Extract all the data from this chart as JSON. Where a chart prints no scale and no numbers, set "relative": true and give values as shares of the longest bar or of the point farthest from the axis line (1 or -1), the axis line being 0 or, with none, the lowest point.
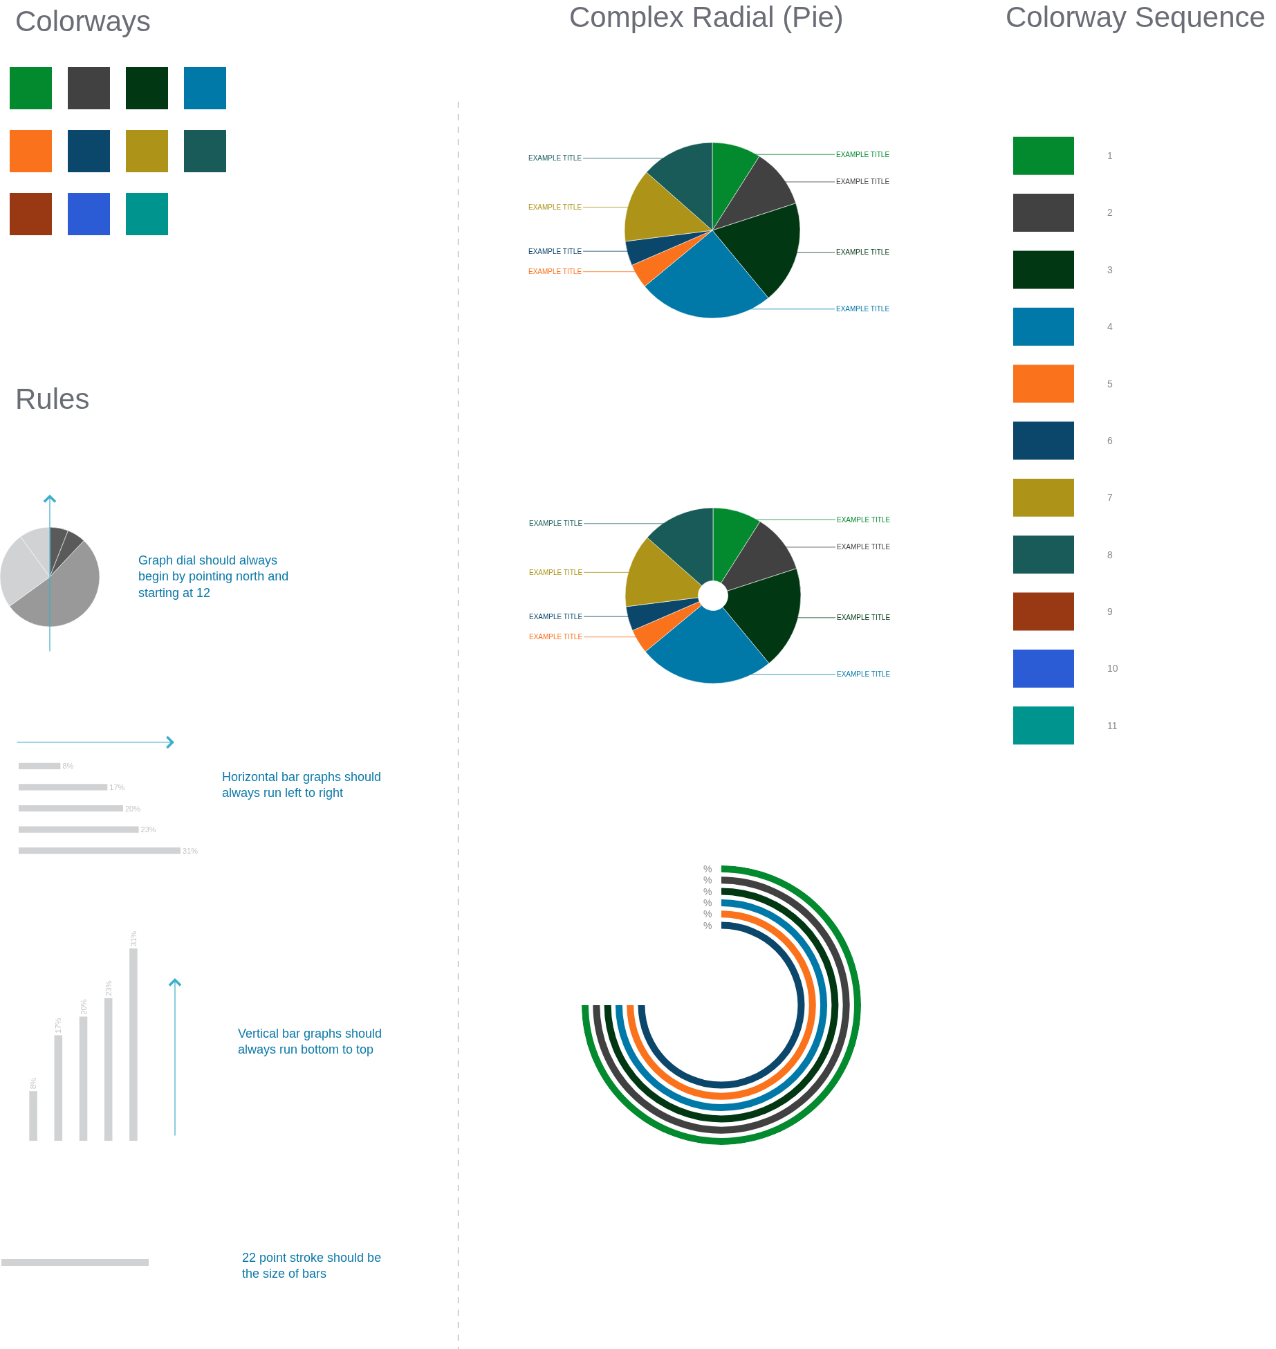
{
  "chart_data": [
    {
      "type": "other",
      "title": "Colorways",
      "colors": [
        "#038a2f",
        "#414141",
        "#013813",
        "#0079a8",
        "#fa721c",
        "#0b466b",
        "#ad9317",
        "#185b59",
        "#983914",
        "#2c5bd6",
        "#00948f"
      ]
    },
    {
      "type": "pie",
      "title": "Rules",
      "categories": [
        null,
        null,
        null,
        null,
        null
      ],
      "values": [
        6,
        6,
        53,
        25,
        10
      ],
      "colors": [
        "#5a5a5a",
        "#5a5a5a",
        "#999999",
        "#d1d2d4",
        "#d1d2d4"
      ],
      "annotations": [
        "Graph dial should always\nbegin by pointing north and\nstarting at 12"
      ]
    },
    {
      "type": "bar",
      "orientation": "horizontal",
      "categories": [
        null,
        null,
        null,
        null,
        null
      ],
      "values": [
        8,
        17,
        20,
        23,
        31
      ],
      "value_labels": [
        "8%",
        "17%",
        "20%",
        "23%",
        "31%"
      ],
      "color": "#d1d2d4",
      "annotations": [
        "Horizontal bar graphs should\nalways run left to right"
      ]
    },
    {
      "type": "bar",
      "categories": [
        null,
        null,
        null,
        null,
        null
      ],
      "values": [
        8,
        17,
        20,
        23,
        31
      ],
      "value_labels": [
        "8%",
        "17%",
        "20%",
        "23%",
        "31%"
      ],
      "color": "#d1d2d4",
      "annotations": [
        "Vertical bar graphs should\nalways run bottom to top"
      ]
    },
    {
      "type": "other",
      "color": "#d1d2d4",
      "annotations": [
        "22 point stroke should be\nthe size of bars"
      ]
    },
    {
      "type": "pie",
      "title": "Complex Radial (Pie)",
      "categories": [
        "EXAMPLE TITLE",
        "EXAMPLE TITLE",
        "EXAMPLE TITLE",
        "EXAMPLE TITLE",
        "EXAMPLE TITLE",
        "EXAMPLE TITLE",
        "EXAMPLE TITLE",
        "EXAMPLE TITLE"
      ],
      "values": [
        9,
        11,
        19,
        25,
        4.5,
        4.5,
        13.5,
        13.5
      ],
      "colors": [
        "#038a2f",
        "#414141",
        "#013813",
        "#0079a8",
        "#fa721c",
        "#0b466b",
        "#ad9317",
        "#185b59"
      ]
    },
    {
      "type": "donut",
      "categories": [
        "EXAMPLE TITLE",
        "EXAMPLE TITLE",
        "EXAMPLE TITLE",
        "EXAMPLE TITLE",
        "EXAMPLE TITLE",
        "EXAMPLE TITLE",
        "EXAMPLE TITLE",
        "EXAMPLE TITLE"
      ],
      "values": [
        9,
        11,
        19,
        25,
        4.5,
        4.5,
        13.5,
        13.5
      ],
      "colors": [
        "#038a2f",
        "#414141",
        "#013813",
        "#0079a8",
        "#fa721c",
        "#0b466b",
        "#ad9317",
        "#185b59"
      ]
    },
    {
      "type": "other",
      "colors": [
        "#038a2f",
        "#414141",
        "#013813",
        "#0079a8",
        "#fa721c",
        "#0b466b"
      ],
      "annotations": [
        "%",
        "%",
        "%",
        "%",
        "%",
        "%"
      ]
    },
    {
      "type": "bar",
      "orientation": "horizontal",
      "relative": true,
      "title": "Colorway Sequence",
      "categories": [
        "1",
        "2",
        "3",
        "4",
        "5",
        "6",
        "7",
        "8",
        "9",
        "10",
        "11"
      ],
      "values": [
        1,
        1,
        1,
        1,
        1,
        1,
        1,
        1,
        1,
        1,
        1
      ],
      "colors": [
        "#038a2f",
        "#414141",
        "#013813",
        "#0079a8",
        "#fa721c",
        "#0b466b",
        "#ad9317",
        "#185b59",
        "#983914",
        "#2c5bd6",
        "#00948f"
      ]
    }
  ]
}
